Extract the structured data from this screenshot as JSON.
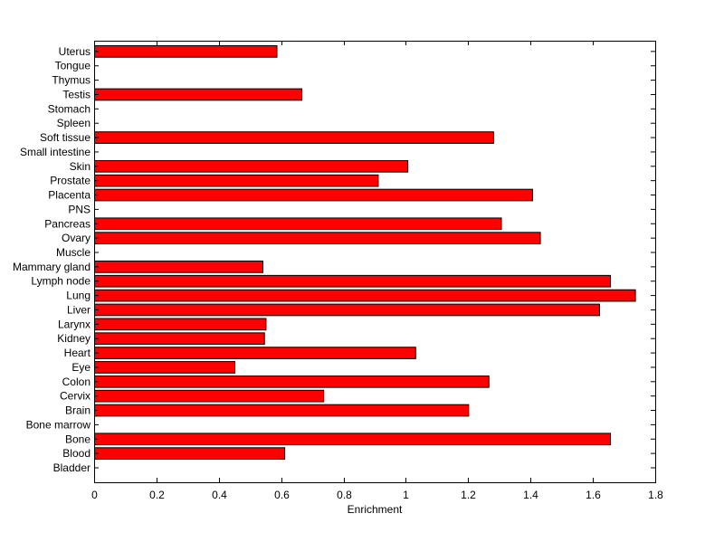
{
  "chart_data": {
    "type": "bar",
    "orientation": "horizontal",
    "title": "",
    "xlabel": "Enrichment",
    "ylabel": "",
    "xlim": [
      0,
      1.8
    ],
    "xticks": [
      0,
      0.2,
      0.4,
      0.6,
      0.8,
      1,
      1.2,
      1.4,
      1.6,
      1.8
    ],
    "xtick_labels": [
      "0",
      "0.2",
      "0.4",
      "0.6",
      "0.8",
      "1",
      "1.2",
      "1.4",
      "1.6",
      "1.8"
    ],
    "grid": false,
    "bar_color": "#ff0000",
    "bar_edge_color": "#000000",
    "categories": [
      "Bladder",
      "Blood",
      "Bone",
      "Bone marrow",
      "Brain",
      "Cervix",
      "Colon",
      "Eye",
      "Heart",
      "Kidney",
      "Larynx",
      "Liver",
      "Lung",
      "Lymph node",
      "Mammary gland",
      "Muscle",
      "Ovary",
      "Pancreas",
      "PNS",
      "Placenta",
      "Prostate",
      "Skin",
      "Small intestine",
      "Soft tissue",
      "Spleen",
      "Stomach",
      "Testis",
      "Thymus",
      "Tongue",
      "Uterus"
    ],
    "values": [
      0,
      0.61,
      1.655,
      0,
      1.2,
      0.735,
      1.265,
      0.45,
      1.03,
      0.545,
      0.55,
      1.62,
      1.735,
      1.655,
      0.54,
      0,
      1.43,
      1.305,
      0,
      1.405,
      0.91,
      1.005,
      0,
      1.28,
      0,
      0,
      0.665,
      0,
      0,
      0.585
    ]
  }
}
